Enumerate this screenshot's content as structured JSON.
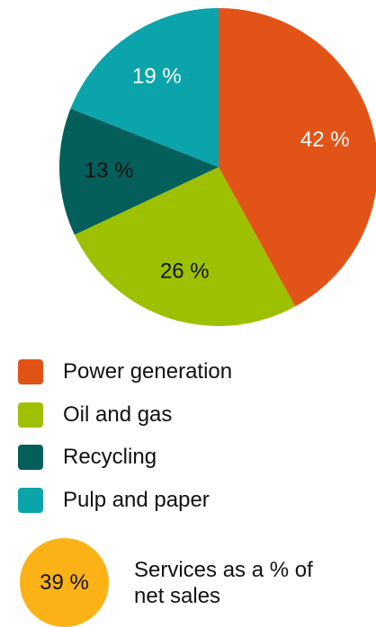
{
  "chart_data": {
    "type": "pie",
    "title": "",
    "categories": [
      "Power generation",
      "Oil and gas",
      "Recycling",
      "Pulp and paper"
    ],
    "values": [
      42,
      26,
      13,
      19
    ],
    "labels": [
      "42 %",
      "26 %",
      "13 %",
      "19 %"
    ],
    "colors": [
      "#e25317",
      "#9dc100",
      "#045e5a",
      "#0aa4aa"
    ],
    "label_colors": [
      "#ffffff",
      "#111111",
      "#111111",
      "#ffffff"
    ],
    "start": "12 o'clock",
    "direction": "clockwise",
    "legend_position": "bottom-left"
  },
  "legend": {
    "items": [
      {
        "label": "Power generation",
        "color": "#e25317"
      },
      {
        "label": "Oil and gas",
        "color": "#9dc100"
      },
      {
        "label": "Recycling",
        "color": "#045e5a"
      },
      {
        "label": "Pulp and paper",
        "color": "#0aa4aa"
      }
    ]
  },
  "kpi": {
    "value": "39 %",
    "caption": "Services as a % of net sales",
    "color": "#fbb217"
  }
}
